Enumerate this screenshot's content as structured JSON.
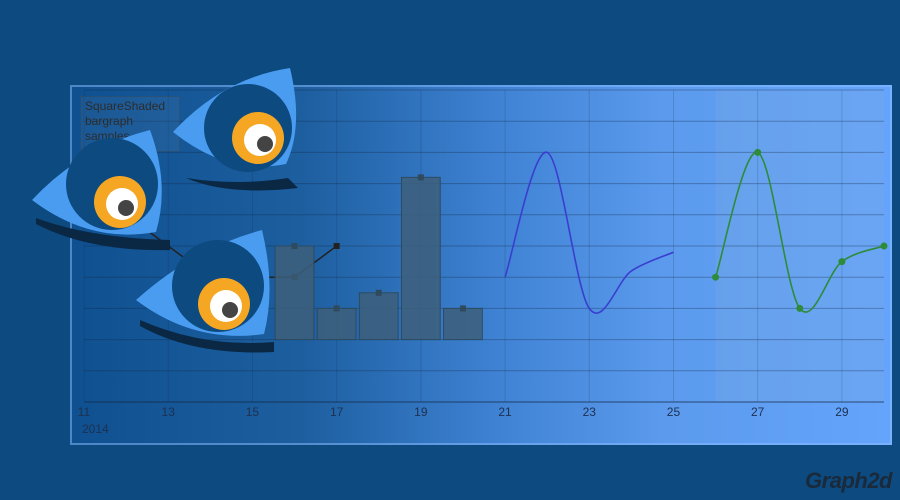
{
  "legend": {
    "lines": [
      "SquareShaded",
      "bargraph",
      "samples"
    ]
  },
  "x_axis_title": "2014",
  "brand": "Graph2d",
  "colors": {
    "background": "#0c4a80",
    "line_series": "#3a3ed0",
    "point_series": "#2e8b3a",
    "bar_fill": "#3d5f7a",
    "bar_marker": "#2f4a5c",
    "square_marker": "#222222",
    "mascot_body": "#4a9cf0",
    "mascot_iris": "#f5a623"
  },
  "icons": [
    "mascot-eye-icon",
    "mascot-eye-icon",
    "mascot-eye-icon"
  ],
  "chart_data": {
    "type": "bar",
    "title": "",
    "xlabel": "2014",
    "ylabel": "",
    "xlim": [
      11,
      30
    ],
    "ylim": [
      -2,
      8
    ],
    "grid": true,
    "x_ticks": [
      "11",
      "13",
      "15",
      "17",
      "19",
      "21",
      "23",
      "25",
      "27",
      "29"
    ],
    "series": [
      {
        "name": "SquareShaded",
        "type": "line",
        "points": [
          [
            12,
            4
          ],
          [
            14,
            2
          ],
          [
            16,
            2
          ],
          [
            17,
            3
          ]
        ]
      },
      {
        "name": "bargraph",
        "type": "bar",
        "points": [
          [
            16,
            3
          ],
          [
            17,
            1
          ],
          [
            18,
            1.5
          ],
          [
            19,
            5.2
          ],
          [
            20,
            1
          ]
        ]
      },
      {
        "type": "line",
        "points": [
          [
            21,
            2
          ],
          [
            22,
            6
          ],
          [
            23,
            1
          ],
          [
            24,
            2.2
          ],
          [
            25,
            2.8
          ]
        ]
      },
      {
        "type": "line",
        "points": [
          [
            26,
            2
          ],
          [
            27,
            6
          ],
          [
            28,
            1
          ],
          [
            29,
            2.5
          ],
          [
            30,
            3
          ]
        ]
      }
    ]
  }
}
